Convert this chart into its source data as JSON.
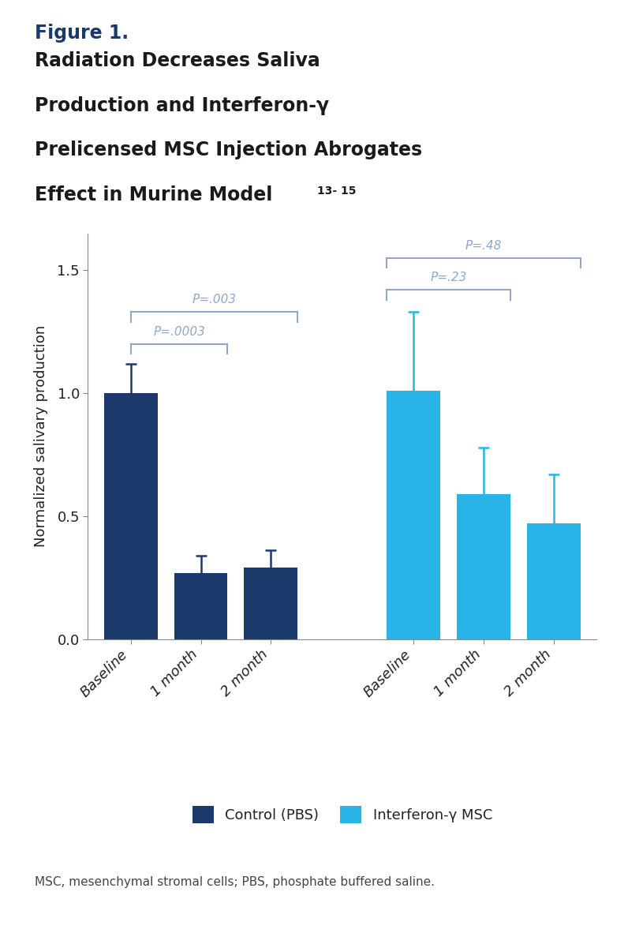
{
  "title_label": "Figure 1.",
  "title_text_line1": "Radiation Decreases Saliva",
  "title_text_line2": "Production and Interferon-γ",
  "title_text_line3": "Prelicensed MSC Injection Abrogates",
  "title_text_line4": "Effect in Murine Model",
  "title_superscript": "13- 15",
  "ylabel": "Normalized salivary production",
  "footnote": "MSC, mesenchymal stromal cells; PBS, phosphate buffered saline.",
  "legend_labels": [
    "Control (PBS)",
    "Interferon-γ MSC"
  ],
  "legend_colors": [
    "#1b3a6b",
    "#29b4e8"
  ],
  "control_values": [
    1.0,
    0.27,
    0.29
  ],
  "control_errors": [
    0.12,
    0.07,
    0.07
  ],
  "ifn_values": [
    1.01,
    0.59,
    0.47
  ],
  "ifn_errors": [
    0.32,
    0.19,
    0.2
  ],
  "categories": [
    "Baseline",
    "1 month",
    "2 month"
  ],
  "control_color": "#1b3a6b",
  "ifn_color": "#29b4e8",
  "bracket_color": "#8fa8c8",
  "pvalues_control": [
    "P=.0003",
    "P=.003"
  ],
  "pvalues_ifn": [
    "P=.23",
    "P=.48"
  ],
  "ylim": [
    0,
    1.65
  ],
  "yticks": [
    0.0,
    0.5,
    1.0,
    1.5
  ],
  "title_label_color": "#1b3a6b",
  "title_text_color": "#1a1a1a",
  "ylabel_color": "#1a1a1a",
  "background_color": "#ffffff"
}
